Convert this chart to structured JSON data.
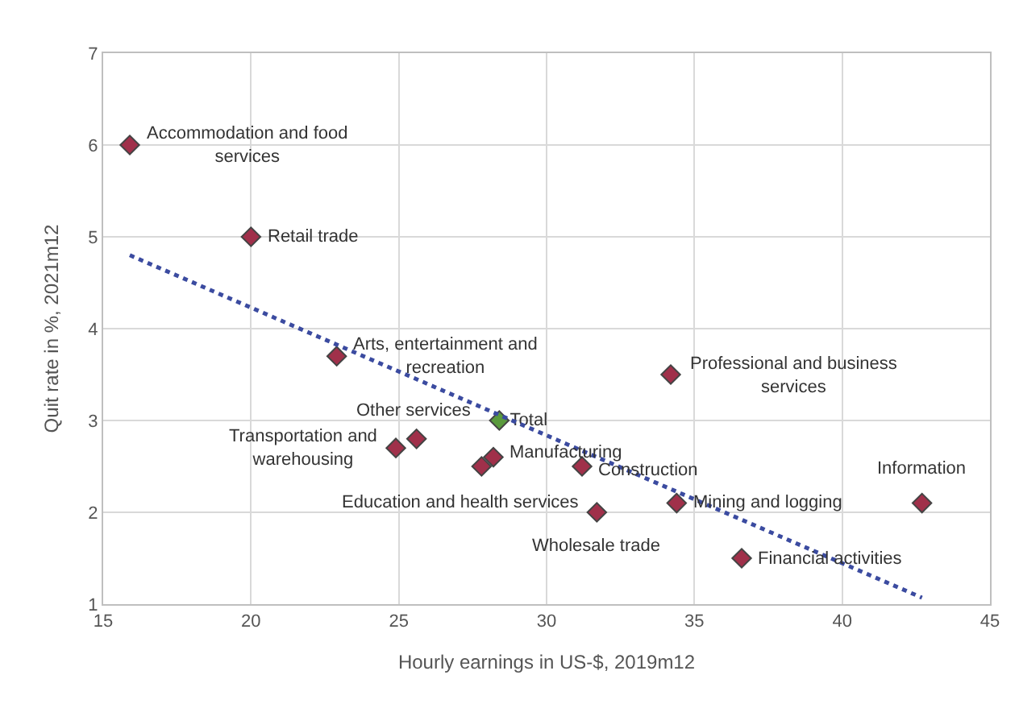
{
  "chart_data": {
    "type": "scatter",
    "xlabel": "Hourly earnings in US-$, 2019m12",
    "ylabel": "Quit rate in %, 2021m12",
    "xlim": [
      15,
      45
    ],
    "xticks": [
      15,
      20,
      25,
      30,
      35,
      40,
      45
    ],
    "ylim": [
      1,
      7
    ],
    "yticks": [
      1,
      2,
      3,
      4,
      5,
      6,
      7
    ],
    "grid": true,
    "legend": false,
    "marker": "diamond",
    "series": [
      {
        "color": "#a0304a",
        "x": [
          15.9,
          20.0,
          22.9,
          25.6,
          24.9,
          27.8,
          28.2,
          31.2,
          31.7,
          34.4,
          34.2,
          36.6,
          42.7
        ],
        "values": [
          6.0,
          5.0,
          3.7,
          2.8,
          2.7,
          2.5,
          2.6,
          2.5,
          2.0,
          2.1,
          3.5,
          1.5,
          2.1
        ]
      },
      {
        "name": "Total",
        "color": "#5a9a3c",
        "x": [
          28.4
        ],
        "values": [
          3.0
        ]
      },
      {
        "type": "line",
        "line_style": "dotted",
        "marker": "none",
        "color": "#3b4ba0",
        "x": [
          15.9,
          42.7
        ],
        "values": [
          4.8,
          1.07
        ]
      }
    ],
    "annotations": [
      {
        "text": "Accommodation and food\nservices",
        "x": 15.9,
        "y": 6.0
      },
      {
        "text": "Retail trade",
        "x": 20.0,
        "y": 5.0
      },
      {
        "text": "Arts, entertainment and\nrecreation",
        "x": 22.9,
        "y": 3.7
      },
      {
        "text": "Other services",
        "x": 25.6,
        "y": 2.8
      },
      {
        "text": "Transportation and\nwarehousing",
        "x": 24.9,
        "y": 2.7
      },
      {
        "text": "Education and health services",
        "x": 27.8,
        "y": 2.5
      },
      {
        "text": "Manufacturing",
        "x": 28.2,
        "y": 2.6
      },
      {
        "text": "Construction",
        "x": 31.2,
        "y": 2.5
      },
      {
        "text": "Wholesale trade",
        "x": 31.7,
        "y": 2.0
      },
      {
        "text": "Mining and logging",
        "x": 34.4,
        "y": 2.1
      },
      {
        "text": "Professional and business\nservices",
        "x": 34.2,
        "y": 3.5
      },
      {
        "text": "Financial activities",
        "x": 36.6,
        "y": 1.5
      },
      {
        "text": "Information",
        "x": 42.7,
        "y": 2.1
      }
    ]
  }
}
